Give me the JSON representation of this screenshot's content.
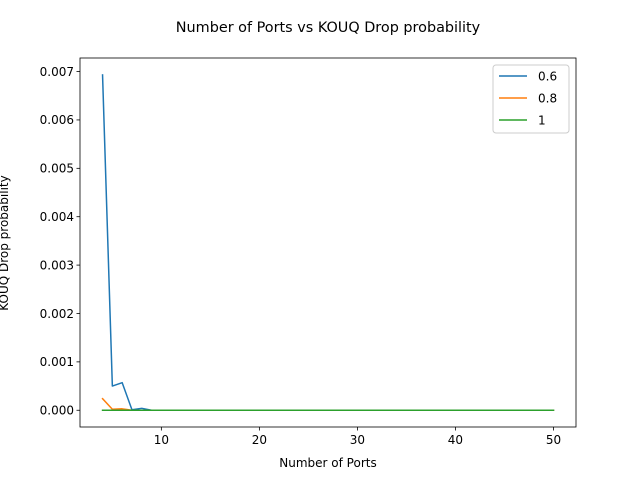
{
  "chart_data": {
    "type": "line",
    "title": "Number of Ports vs KOUQ Drop probability",
    "xlabel": "Number of Ports",
    "ylabel": "KOUQ Drop probability",
    "xlim": [
      1.7,
      52.3
    ],
    "ylim": [
      -0.000346,
      0.00728
    ],
    "xticks": [
      10,
      20,
      30,
      40,
      50
    ],
    "xtick_labels": [
      "10",
      "20",
      "30",
      "40",
      "50"
    ],
    "yticks": [
      0.0,
      0.001,
      0.002,
      0.003,
      0.004,
      0.005,
      0.006,
      0.007
    ],
    "ytick_labels": [
      "0.000",
      "0.001",
      "0.002",
      "0.003",
      "0.004",
      "0.005",
      "0.006",
      "0.007"
    ],
    "grid": false,
    "legend_position": "top-right",
    "series": [
      {
        "name": "0.6",
        "color": "#1f77b4",
        "x": [
          4,
          5,
          6,
          7,
          8,
          9,
          10,
          15,
          20,
          25,
          30,
          35,
          40,
          45,
          50
        ],
        "y": [
          0.00693,
          0.0005,
          0.00057,
          1e-05,
          4e-05,
          0.0,
          0.0,
          0.0,
          0.0,
          0.0,
          0.0,
          0.0,
          0.0,
          0.0,
          0.0
        ]
      },
      {
        "name": "0.8",
        "color": "#ff7f0e",
        "x": [
          4,
          5,
          6,
          7,
          8,
          9,
          10,
          15,
          20,
          25,
          30,
          35,
          40,
          45,
          50
        ],
        "y": [
          0.00024,
          2e-05,
          3e-05,
          0.0,
          0.0,
          0.0,
          0.0,
          0.0,
          0.0,
          0.0,
          0.0,
          0.0,
          0.0,
          0.0,
          0.0
        ]
      },
      {
        "name": "1",
        "color": "#2ca02c",
        "x": [
          4,
          5,
          6,
          7,
          8,
          9,
          10,
          15,
          20,
          25,
          30,
          35,
          40,
          45,
          50
        ],
        "y": [
          0.0,
          0.0,
          0.0,
          0.0,
          0.0,
          0.0,
          0.0,
          0.0,
          0.0,
          0.0,
          0.0,
          0.0,
          0.0,
          0.0,
          0.0
        ]
      }
    ]
  }
}
